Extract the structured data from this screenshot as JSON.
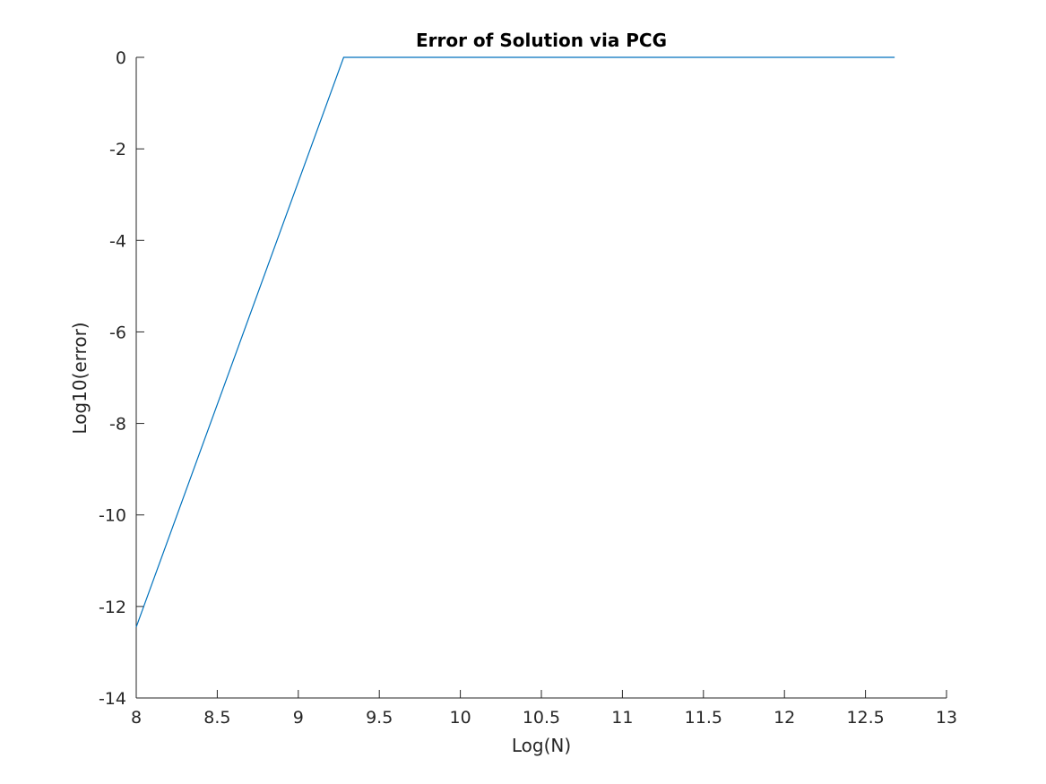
{
  "chart_data": {
    "type": "line",
    "title": "Error of Solution via PCG",
    "xlabel": "Log(N)",
    "ylabel": "Log10(error)",
    "xlim": [
      8,
      13
    ],
    "ylim": [
      -14,
      0
    ],
    "xticks": [
      "8",
      "8.5",
      "9",
      "9.5",
      "10",
      "10.5",
      "11",
      "11.5",
      "12",
      "12.5",
      "13"
    ],
    "yticks": [
      "-14",
      "-12",
      "-10",
      "-8",
      "-6",
      "-4",
      "-2",
      "0"
    ],
    "grid": false,
    "series": [
      {
        "color": "#0072BD",
        "x": [
          8.0,
          9.28,
          12.68
        ],
        "y": [
          -12.45,
          0,
          0
        ]
      }
    ]
  }
}
